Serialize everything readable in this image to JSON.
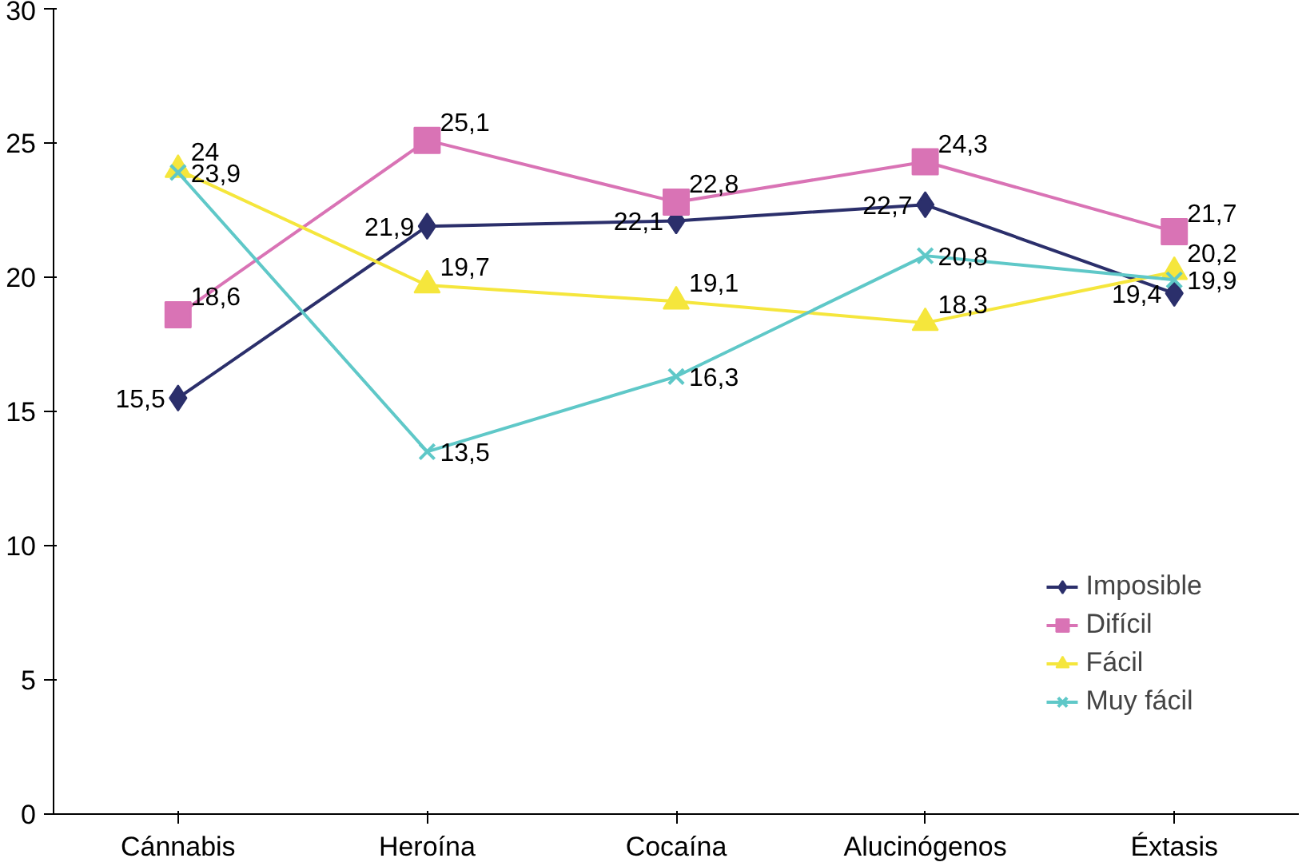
{
  "chart_data": {
    "type": "line",
    "categories": [
      "Cánnabis",
      "Heroína",
      "Cocaína",
      "Alucinógenos",
      "Éxtasis"
    ],
    "series": [
      {
        "name": "Imposible",
        "color": "#2b2f6b",
        "marker": "diamond",
        "values": [
          15.5,
          21.9,
          22.1,
          22.7,
          19.4
        ],
        "value_labels": [
          "15,5",
          "21,9",
          "22,1",
          "22,7",
          "19,4"
        ]
      },
      {
        "name": "Difícil",
        "color": "#d973b5",
        "marker": "square",
        "values": [
          18.6,
          25.1,
          22.8,
          24.3,
          21.7
        ],
        "value_labels": [
          "18,6",
          "25,1",
          "22,8",
          "24,3",
          "21,7"
        ]
      },
      {
        "name": "Fácil",
        "color": "#f5e63c",
        "marker": "triangle",
        "values": [
          24,
          19.7,
          19.1,
          18.3,
          20.2
        ],
        "value_labels": [
          "24",
          "19,7",
          "19,1",
          "18,3",
          "20,2"
        ]
      },
      {
        "name": "Muy fácil",
        "color": "#5fc8c8",
        "marker": "cross",
        "values": [
          23.9,
          13.5,
          16.3,
          20.8,
          19.9
        ],
        "value_labels": [
          "23,9",
          "13,5",
          "16,3",
          "20,8",
          "19,9"
        ]
      }
    ],
    "ylim": [
      0,
      30
    ],
    "yticks": [
      0,
      5,
      10,
      15,
      20,
      25,
      30
    ],
    "grid": false,
    "legend": "right"
  }
}
